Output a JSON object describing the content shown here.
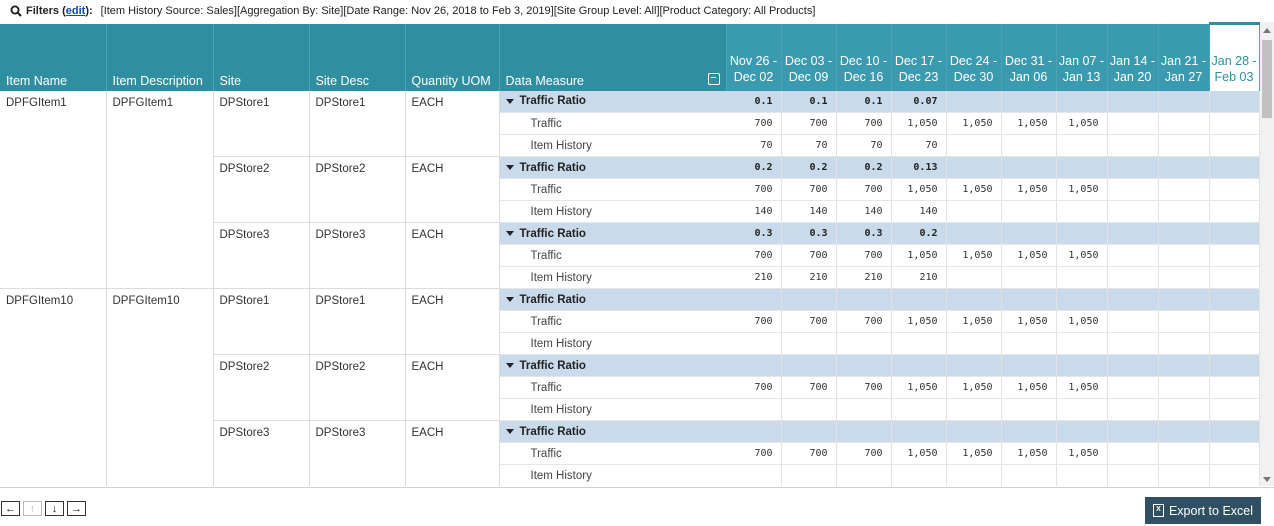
{
  "filters": {
    "label": "Filters",
    "edit_label": "edit",
    "text": "[Item History Source: Sales][Aggregation By: Site][Date Range: Nov 26, 2018 to Feb 3, 2019][Site Group Level: All][Product Category: All Products]"
  },
  "grid": {
    "columns": {
      "item_name": "Item Name",
      "item_description": "Item Description",
      "site": "Site",
      "site_desc": "Site Desc",
      "quantity_uom": "Quantity UOM",
      "data_measure": "Data Measure"
    },
    "collapse_all_symbol": "−",
    "dates": [
      {
        "line1": "Nov 26 -",
        "line2": "Dec 02"
      },
      {
        "line1": "Dec 03 -",
        "line2": "Dec 09"
      },
      {
        "line1": "Dec 10 -",
        "line2": "Dec 16"
      },
      {
        "line1": "Dec 17 -",
        "line2": "Dec 23"
      },
      {
        "line1": "Dec 24 -",
        "line2": "Dec 30"
      },
      {
        "line1": "Dec 31 -",
        "line2": "Jan 06"
      },
      {
        "line1": "Jan 07 -",
        "line2": "Jan 13"
      },
      {
        "line1": "Jan 14 -",
        "line2": "Jan 20"
      },
      {
        "line1": "Jan 21 -",
        "line2": "Jan 27"
      },
      {
        "line1": "Jan 28 -",
        "line2": "Feb 03"
      }
    ],
    "measures": {
      "ratio": "Traffic Ratio",
      "traffic": "Traffic",
      "history": "Item History"
    },
    "groups": [
      {
        "item_name": "DPFGItem1",
        "item_description": "DPFGItem1",
        "sites": [
          {
            "site": "DPStore1",
            "site_desc": "DPStore1",
            "uom": "EACH",
            "ratio": [
              "0.1",
              "0.1",
              "0.1",
              "0.07",
              "",
              "",
              "",
              "",
              "",
              ""
            ],
            "traffic": [
              "700",
              "700",
              "700",
              "1,050",
              "1,050",
              "1,050",
              "1,050",
              "",
              "",
              ""
            ],
            "history": [
              "70",
              "70",
              "70",
              "70",
              "",
              "",
              "",
              "",
              "",
              ""
            ]
          },
          {
            "site": "DPStore2",
            "site_desc": "DPStore2",
            "uom": "EACH",
            "ratio": [
              "0.2",
              "0.2",
              "0.2",
              "0.13",
              "",
              "",
              "",
              "",
              "",
              ""
            ],
            "traffic": [
              "700",
              "700",
              "700",
              "1,050",
              "1,050",
              "1,050",
              "1,050",
              "",
              "",
              ""
            ],
            "history": [
              "140",
              "140",
              "140",
              "140",
              "",
              "",
              "",
              "",
              "",
              ""
            ]
          },
          {
            "site": "DPStore3",
            "site_desc": "DPStore3",
            "uom": "EACH",
            "ratio": [
              "0.3",
              "0.3",
              "0.3",
              "0.2",
              "",
              "",
              "",
              "",
              "",
              ""
            ],
            "traffic": [
              "700",
              "700",
              "700",
              "1,050",
              "1,050",
              "1,050",
              "1,050",
              "",
              "",
              ""
            ],
            "history": [
              "210",
              "210",
              "210",
              "210",
              "",
              "",
              "",
              "",
              "",
              ""
            ]
          }
        ]
      },
      {
        "item_name": "DPFGItem10",
        "item_description": "DPFGItem10",
        "sites": [
          {
            "site": "DPStore1",
            "site_desc": "DPStore1",
            "uom": "EACH",
            "ratio": [
              "",
              "",
              "",
              "",
              "",
              "",
              "",
              "",
              "",
              ""
            ],
            "traffic": [
              "700",
              "700",
              "700",
              "1,050",
              "1,050",
              "1,050",
              "1,050",
              "",
              "",
              ""
            ],
            "history": [
              "",
              "",
              "",
              "",
              "",
              "",
              "",
              "",
              "",
              ""
            ]
          },
          {
            "site": "DPStore2",
            "site_desc": "DPStore2",
            "uom": "EACH",
            "ratio": [
              "",
              "",
              "",
              "",
              "",
              "",
              "",
              "",
              "",
              ""
            ],
            "traffic": [
              "700",
              "700",
              "700",
              "1,050",
              "1,050",
              "1,050",
              "1,050",
              "",
              "",
              ""
            ],
            "history": [
              "",
              "",
              "",
              "",
              "",
              "",
              "",
              "",
              "",
              ""
            ]
          },
          {
            "site": "DPStore3",
            "site_desc": "DPStore3",
            "uom": "EACH",
            "ratio": [
              "",
              "",
              "",
              "",
              "",
              "",
              "",
              "",
              "",
              ""
            ],
            "traffic": [
              "700",
              "700",
              "700",
              "1,050",
              "1,050",
              "1,050",
              "1,050",
              "",
              "",
              ""
            ],
            "history": [
              "",
              "",
              "",
              "",
              "",
              "",
              "",
              "",
              "",
              ""
            ]
          }
        ]
      }
    ]
  },
  "pager": {
    "left": "←",
    "up": "↑",
    "down": "↓",
    "right": "→"
  },
  "export": {
    "label": "Export to Excel",
    "icon_glyph": "X"
  },
  "colors": {
    "header": "#2f8ea0",
    "ratio_row": "#c9daea",
    "export_button": "#2f4f63"
  }
}
